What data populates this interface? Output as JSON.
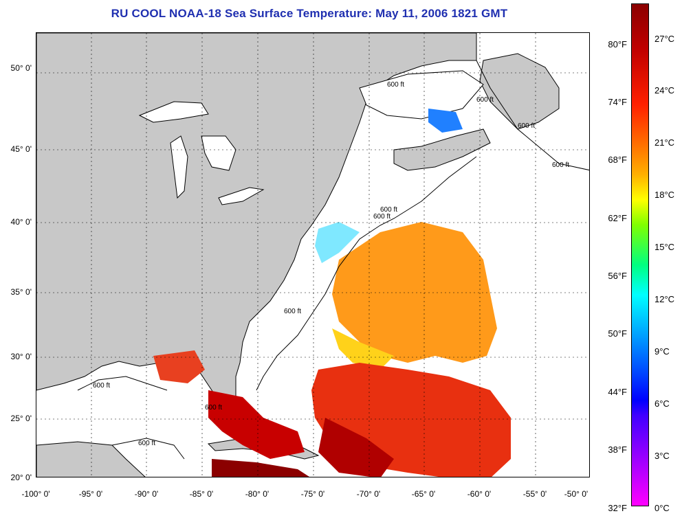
{
  "title": "RU COOL  NOAA-18  Sea Surface Temperature:  May 11, 2006 1821 GMT",
  "map": {
    "lat_labels": [
      "50° 0'",
      "45° 0'",
      "40° 0'",
      "35° 0'",
      "30° 0'",
      "25° 0'",
      "20° 0'"
    ],
    "lon_labels": [
      "-100° 0'",
      "-95° 0'",
      "-90° 0'",
      "-85° 0'",
      "-80° 0'",
      "-75° 0'",
      "-70° 0'",
      "-65° 0'",
      "-60° 0'",
      "-55° 0'",
      "-50° 0'"
    ],
    "contour_labels": [
      "600 ft",
      "600 ft",
      "600 ft",
      "600 ft",
      "600 ft",
      "600 ft",
      "600 ft",
      "600 ft",
      "600 ft",
      "600 ft"
    ],
    "land_color": "#c8c8c8",
    "ocean_color": "#ffffff"
  },
  "colorbar": {
    "fahrenheit_labels": [
      "80°F",
      "74°F",
      "68°F",
      "62°F",
      "56°F",
      "50°F",
      "44°F",
      "38°F",
      "32°F"
    ],
    "celsius_labels": [
      "27°C",
      "24°C",
      "21°C",
      "18°C",
      "15°C",
      "12°C",
      "9°C",
      "6°C",
      "3°C",
      "0°C"
    ]
  }
}
